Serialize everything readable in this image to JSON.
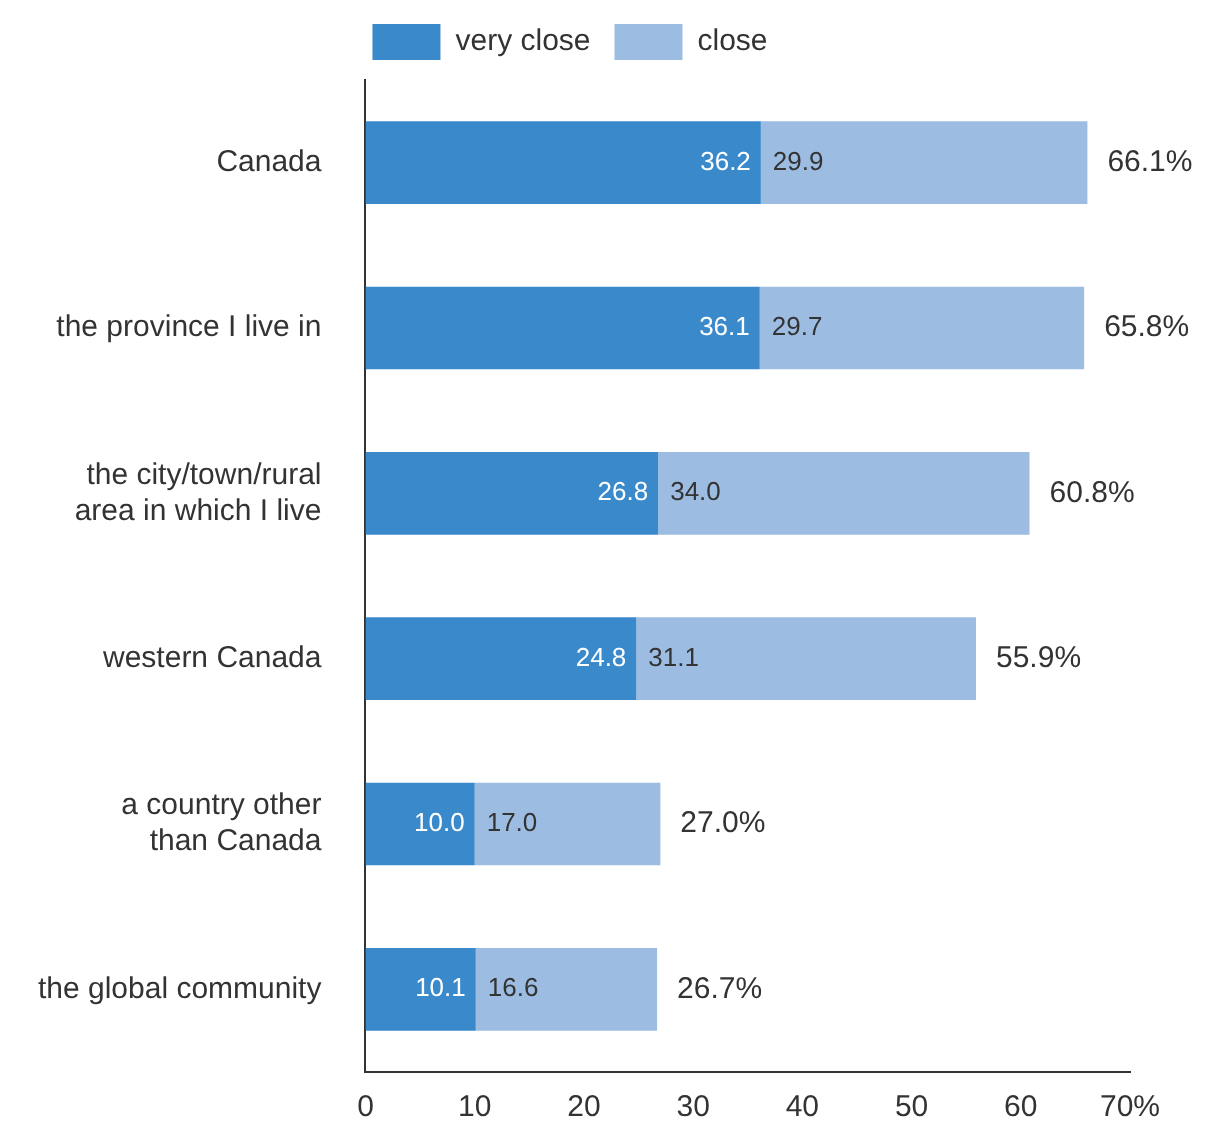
{
  "chart_data": {
    "type": "bar",
    "orientation": "horizontal",
    "stacked": true,
    "categories": [
      "Canada",
      "the province I live in",
      "the city/town/rural\narea in which I live",
      "western Canada",
      "a country other\nthan Canada",
      "the global community"
    ],
    "series": [
      {
        "name": "very close",
        "color": "#3a8acb",
        "values": [
          36.2,
          36.1,
          26.8,
          24.8,
          10.0,
          10.1
        ],
        "value_labels": [
          "36.2",
          "36.1",
          "26.8",
          "24.8",
          "10.0",
          "10.1"
        ]
      },
      {
        "name": "close",
        "color": "#9dbce2",
        "values": [
          29.9,
          29.7,
          34.0,
          31.1,
          17.0,
          16.6
        ],
        "value_labels": [
          "29.9",
          "29.7",
          "34.0",
          "31.1",
          "17.0",
          "16.6"
        ]
      }
    ],
    "totals": [
      "66.1%",
      "65.8%",
      "60.8%",
      "55.9%",
      "27.0%",
      "26.7%"
    ],
    "xlim": [
      0,
      70
    ],
    "xticks": [
      0,
      10,
      20,
      30,
      40,
      50,
      60,
      {
        "value": 70,
        "label": "70%"
      }
    ],
    "grid": false,
    "legend": "top"
  }
}
